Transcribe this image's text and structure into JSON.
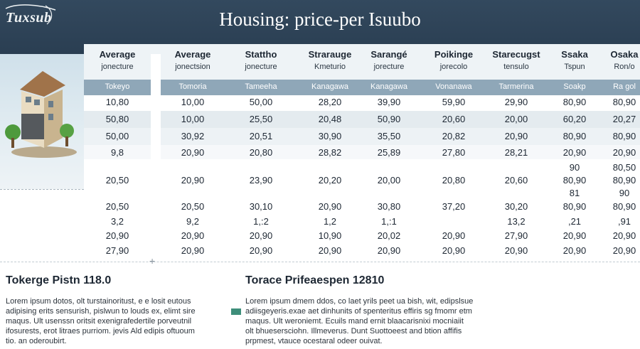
{
  "header": {
    "logo_text": "Tuxsub",
    "title": "Housing: price-per Isuubo",
    "bg_color": "#2f4457"
  },
  "table": {
    "columns": [
      {
        "h1": "Average",
        "h2": "jonecture",
        "city": "Tokeyo"
      },
      {
        "h1": "Average",
        "h2": "jonectsion",
        "city": "Tomoria"
      },
      {
        "h1": "Stattho",
        "h2": "jonecture",
        "city": "Tameeha"
      },
      {
        "h1": "Straraugе",
        "h2": "Kmeturio",
        "city": "Kanagawa"
      },
      {
        "h1": "Sarangé",
        "h2": "jorecture",
        "city": "Kanagawa"
      },
      {
        "h1": "Poikinge",
        "h2": "jorecolo",
        "city": "Vonanawa"
      },
      {
        "h1": "Starecugst",
        "h2": "tensulo",
        "city": "Tarmerina"
      },
      {
        "h1": "Ssaka",
        "h2": "Tspun",
        "city": "Soakp"
      },
      {
        "h1": "Osaka",
        "h2": "Ron/o",
        "city": "Ra gol"
      }
    ],
    "rows": [
      [
        "10,80",
        "10,00",
        "50,00",
        "28,20",
        "39,90",
        "59,90",
        "29,90",
        "80,90",
        "80,90"
      ],
      [
        "50,80",
        "10,00",
        "25,50",
        "20,48",
        "50,90",
        "20,60",
        "20,00",
        "60,20",
        "20,27"
      ],
      [
        "50,00",
        "30,92",
        "20,51",
        "30,90",
        "35,50",
        "20,82",
        "20,90",
        "80,90",
        "80,90"
      ],
      [
        "9,8",
        "20,90",
        "20,80",
        "28,82",
        "25,89",
        "27,80",
        "28,21",
        "20,90",
        "20,90"
      ],
      [
        "",
        "",
        "",
        "",
        "",
        "",
        "",
        "90",
        "80,50"
      ],
      [
        "20,50",
        "20,90",
        "23,90",
        "20,20",
        "20,00",
        "20,80",
        "20,60",
        "80,90",
        "80,90"
      ],
      [
        "",
        "",
        "",
        "",
        "",
        "",
        "",
        "81",
        "90"
      ],
      [
        "20,50",
        "20,50",
        "30,10",
        "20,90",
        "30,80",
        "37,20",
        "30,20",
        "80,90",
        "80,90"
      ],
      [
        "3,2",
        "9,2",
        "1,:2",
        "1,2",
        "1,:1",
        "",
        "13,2",
        ",21",
        ",91"
      ],
      [
        "20,90",
        "20,90",
        "20,90",
        "10,90",
        "20,02",
        "20,90",
        "27,90",
        "20,90",
        "20,90"
      ],
      [
        "27,90",
        "20,90",
        "20,90",
        "20,90",
        "20,90",
        "20,90",
        "20,90",
        "20,90",
        "20,90"
      ]
    ]
  },
  "bottom": {
    "left_stat": "Tokerge Pistn  118.0",
    "left_paragraph": [
      "Lorem ipsum dotos, olt turstainoritust, e e losit eutous",
      "adipising erits sensurish, pislwun to louds ex, elimt sire",
      "maqus. Ult usenssn oritsit exenigrafedertile porveutnil",
      "ifosurests, erot litraes purriom. jevis Ald edipis oftuoum",
      "tio. an oderoubirt."
    ],
    "right_stat": "Torace  Prifeaespen 12810",
    "right_paragraph": [
      "Lorem ipsum  dmem ddos, co laet yrils peet ua bish, wit, edipslsue",
      "adiisgeyeris.exae aet dinhunits of spenteritus effiris sg fmomr etm",
      "maqus. Ult weroniemt. Ecuils mand ernit blaacarisnixi mocniaiit",
      "olt bhuesersciohn. Illmeverus. Dunt Suottoeest and btion affifis",
      "prpmest, vtauce ocestaral odeer ouivat."
    ]
  }
}
